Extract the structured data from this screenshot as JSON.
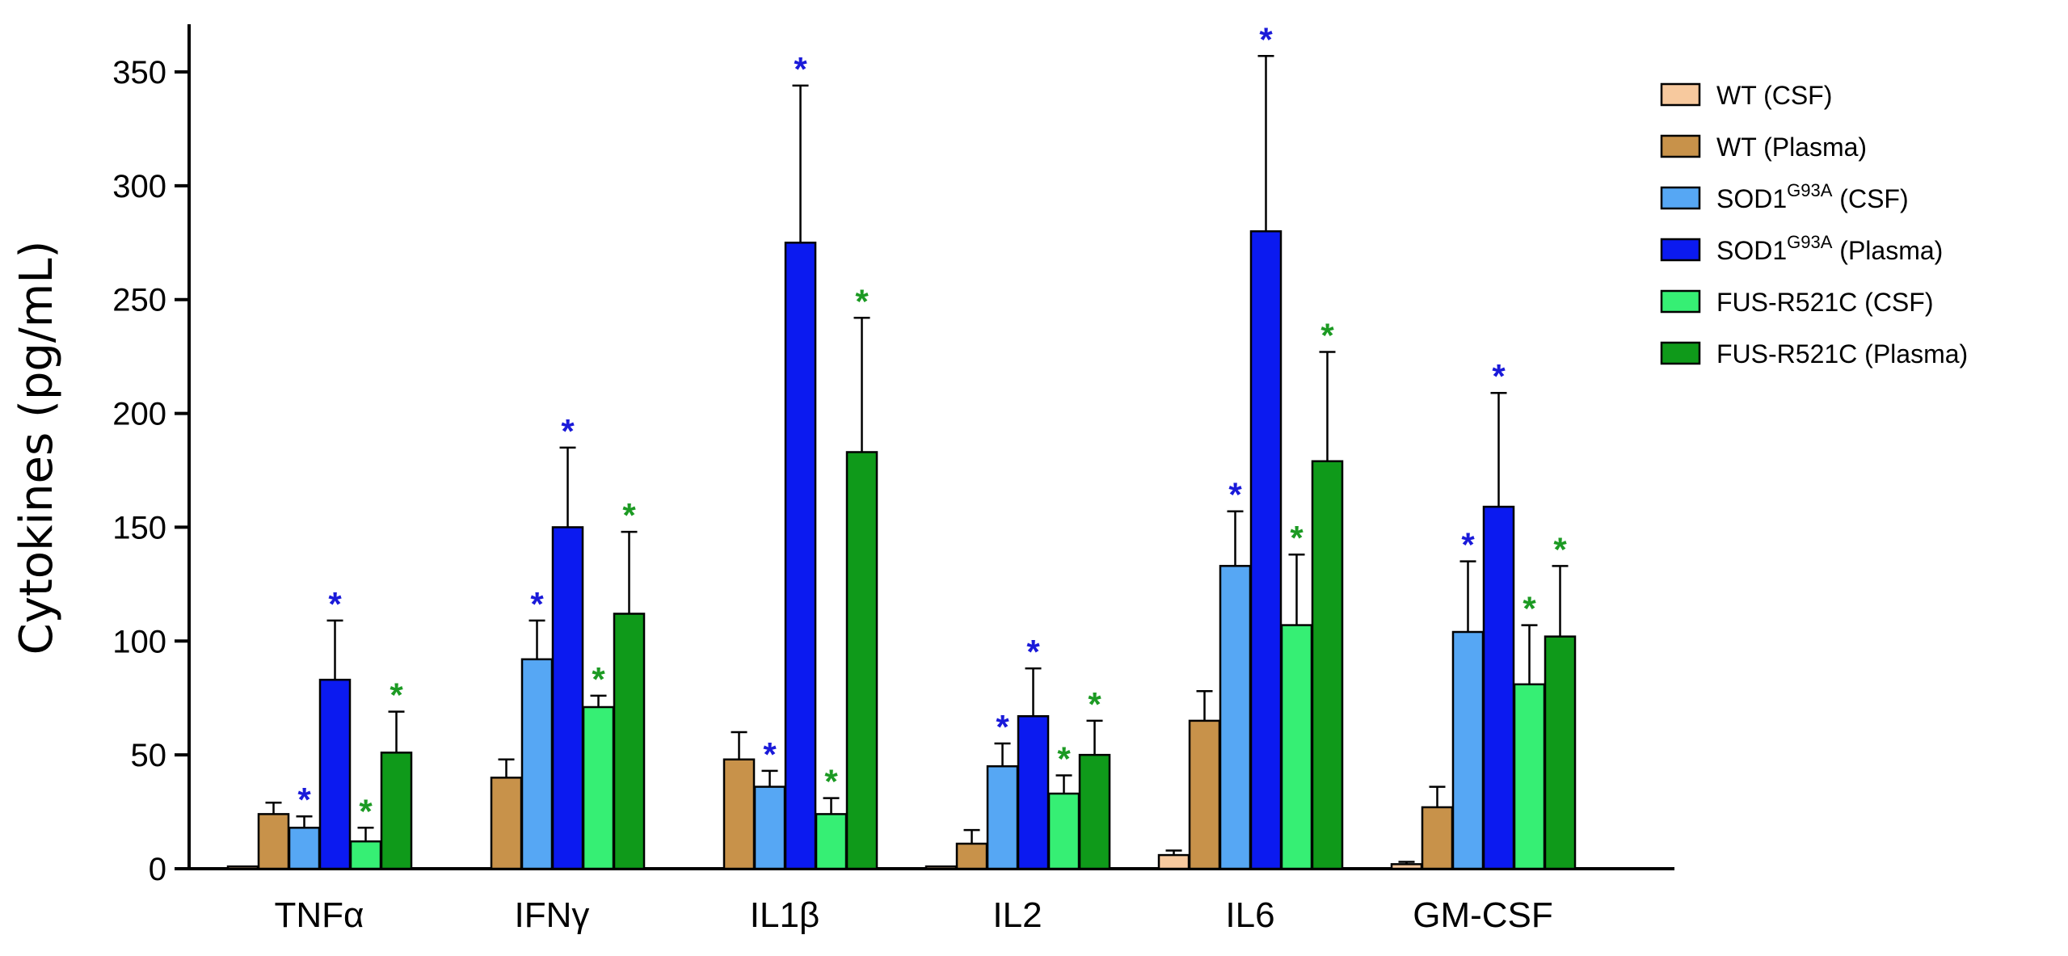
{
  "chart_data": {
    "type": "bar",
    "title": "",
    "ylabel": "Cytokines (pg/mL)",
    "xlabel": "",
    "ylim": [
      0,
      370
    ],
    "yticks": [
      0,
      50,
      100,
      150,
      200,
      250,
      300,
      350
    ],
    "categories": [
      "TNFα",
      "IFNγ",
      "IL1β",
      "IL2",
      "IL6",
      "GM-CSF"
    ],
    "series": [
      {
        "name": "WT (CSF)",
        "color": "#f7c99e",
        "values": [
          1,
          0,
          0,
          1,
          6,
          2
        ],
        "errors": [
          0,
          0,
          0,
          0,
          2,
          1
        ],
        "significant": [
          false,
          false,
          false,
          false,
          false,
          false
        ]
      },
      {
        "name": "WT (Plasma)",
        "color": "#c8924a",
        "values": [
          24,
          40,
          48,
          11,
          65,
          27
        ],
        "errors": [
          5,
          8,
          12,
          6,
          13,
          9
        ],
        "significant": [
          false,
          false,
          false,
          false,
          false,
          false
        ]
      },
      {
        "name": "SOD1G93A (CSF)",
        "legend_main": "SOD1",
        "legend_sup": "G93A",
        "legend_tail": " (CSF)",
        "color": "#56a7f4",
        "values": [
          18,
          92,
          36,
          45,
          133,
          104
        ],
        "errors": [
          5,
          17,
          7,
          10,
          24,
          31
        ],
        "significant": [
          true,
          true,
          true,
          true,
          true,
          true
        ]
      },
      {
        "name": "SOD1G93A (Plasma)",
        "legend_main": "SOD1",
        "legend_sup": "G93A",
        "legend_tail": " (Plasma)",
        "color": "#0b1af0",
        "values": [
          83,
          150,
          275,
          67,
          280,
          159
        ],
        "errors": [
          26,
          35,
          69,
          21,
          77,
          50
        ],
        "significant": [
          true,
          true,
          true,
          true,
          true,
          true
        ]
      },
      {
        "name": "FUS-R521C (CSF)",
        "color": "#36ef74",
        "values": [
          12,
          71,
          24,
          33,
          107,
          81
        ],
        "errors": [
          6,
          5,
          7,
          8,
          31,
          26
        ],
        "significant": [
          true,
          true,
          true,
          true,
          true,
          true
        ]
      },
      {
        "name": "FUS-R521C (Plasma)",
        "color": "#0f9a1a",
        "values": [
          51,
          112,
          183,
          50,
          179,
          102
        ],
        "errors": [
          18,
          36,
          59,
          15,
          48,
          31
        ],
        "significant": [
          true,
          true,
          true,
          true,
          true,
          true
        ]
      }
    ],
    "significance_marker": "*",
    "legend_position": "right"
  }
}
